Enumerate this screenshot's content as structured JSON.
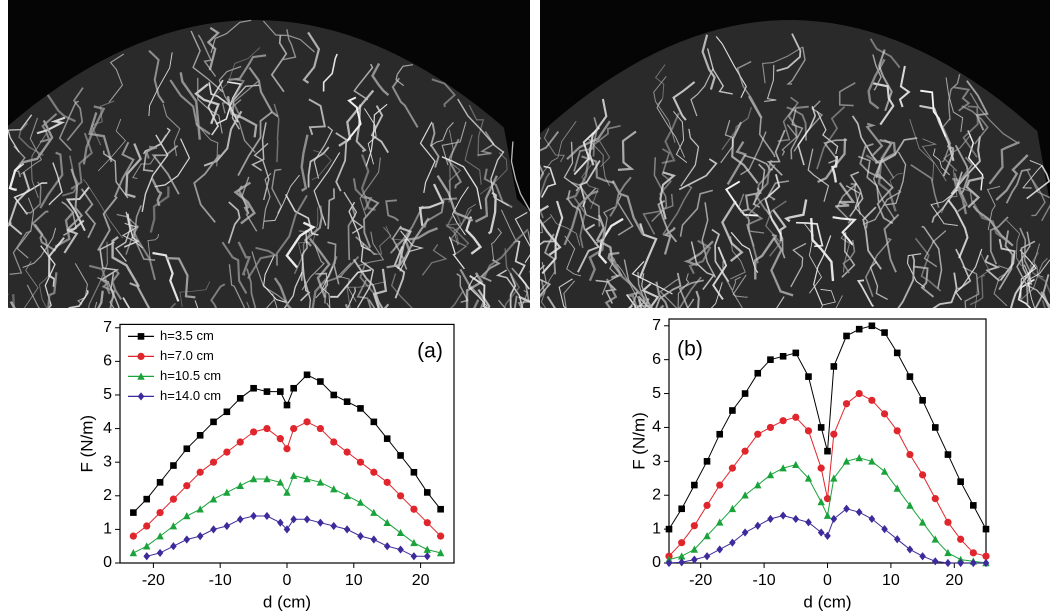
{
  "chart_data": [
    {
      "type": "line",
      "annotation": "(a)",
      "xlabel": "d (cm)",
      "ylabel": "F (N/m)",
      "x": [
        -23,
        -21,
        -19,
        -17,
        -15,
        -13,
        -11,
        -9,
        -7,
        -5,
        -3,
        -1,
        0,
        1,
        3,
        5,
        7,
        9,
        11,
        13,
        15,
        17,
        19,
        21,
        23
      ],
      "xlim": [
        -25,
        25
      ],
      "xticks": [
        -20,
        -10,
        0,
        10,
        20
      ],
      "ylim": [
        0,
        7.1
      ],
      "yticks": [
        0,
        1,
        2,
        3,
        4,
        5,
        6,
        7
      ],
      "legend": "upper left",
      "series": [
        {
          "name": "h=3.5 cm",
          "color": "#000000",
          "marker": "square",
          "values": [
            1.5,
            1.9,
            2.4,
            2.9,
            3.4,
            3.8,
            4.2,
            4.5,
            4.9,
            5.2,
            5.1,
            5.1,
            4.7,
            5.2,
            5.6,
            5.4,
            5.0,
            4.8,
            4.6,
            4.2,
            3.7,
            3.2,
            2.7,
            2.1,
            1.6
          ]
        },
        {
          "name": "h=7.0 cm",
          "color": "#e0262c",
          "marker": "circle",
          "values": [
            0.8,
            1.1,
            1.5,
            1.9,
            2.3,
            2.7,
            3.0,
            3.3,
            3.6,
            3.9,
            4.0,
            3.7,
            3.4,
            4.0,
            4.2,
            4.0,
            3.6,
            3.3,
            3.0,
            2.7,
            2.4,
            2.0,
            1.6,
            1.2,
            0.8
          ]
        },
        {
          "name": "h=10.5 cm",
          "color": "#1aa33a",
          "marker": "triangle",
          "values": [
            0.3,
            0.5,
            0.8,
            1.1,
            1.4,
            1.6,
            1.9,
            2.1,
            2.3,
            2.5,
            2.5,
            2.4,
            2.1,
            2.6,
            2.5,
            2.4,
            2.2,
            2.0,
            1.8,
            1.5,
            1.2,
            0.9,
            0.6,
            0.4,
            0.3
          ]
        },
        {
          "name": "h=14.0 cm",
          "color": "#3f2a9c",
          "marker": "diamond",
          "values": [
            null,
            0.2,
            0.3,
            0.5,
            0.7,
            0.8,
            1.0,
            1.1,
            1.3,
            1.4,
            1.4,
            1.2,
            1.0,
            1.3,
            1.3,
            1.2,
            1.1,
            1.0,
            0.8,
            0.7,
            0.5,
            0.4,
            0.2,
            0.2,
            null
          ]
        }
      ]
    },
    {
      "type": "line",
      "annotation": "(b)",
      "xlabel": "d (cm)",
      "ylabel": "F (N/m)",
      "x": [
        -25,
        -23,
        -21,
        -19,
        -17,
        -15,
        -13,
        -11,
        -9,
        -7,
        -5,
        -3,
        -1,
        0,
        1,
        3,
        5,
        7,
        9,
        11,
        13,
        15,
        17,
        19,
        21,
        23,
        25
      ],
      "xlim": [
        -25,
        25
      ],
      "xticks": [
        -20,
        -10,
        0,
        10,
        20
      ],
      "ylim": [
        0,
        7.2
      ],
      "yticks": [
        0,
        1,
        2,
        3,
        4,
        5,
        6,
        7
      ],
      "series": [
        {
          "color": "#000000",
          "marker": "square",
          "values": [
            1.0,
            1.6,
            2.3,
            3.0,
            3.8,
            4.5,
            5.0,
            5.6,
            6.0,
            6.1,
            6.2,
            5.5,
            4.0,
            3.3,
            5.8,
            6.7,
            6.9,
            7.0,
            6.8,
            6.2,
            5.5,
            4.8,
            4.0,
            3.2,
            2.4,
            1.7,
            1.0
          ]
        },
        {
          "color": "#e0262c",
          "marker": "circle",
          "values": [
            0.2,
            0.6,
            1.1,
            1.7,
            2.3,
            2.8,
            3.3,
            3.8,
            4.0,
            4.2,
            4.3,
            3.9,
            2.8,
            1.9,
            3.8,
            4.7,
            5.0,
            4.8,
            4.4,
            3.9,
            3.2,
            2.6,
            1.9,
            1.2,
            0.7,
            0.3,
            0.2
          ]
        },
        {
          "color": "#1aa33a",
          "marker": "triangle",
          "values": [
            0.1,
            0.2,
            0.4,
            0.8,
            1.2,
            1.6,
            2.0,
            2.3,
            2.6,
            2.8,
            2.9,
            2.5,
            1.8,
            1.4,
            2.5,
            3.0,
            3.1,
            3.0,
            2.7,
            2.2,
            1.7,
            1.2,
            0.7,
            0.3,
            0.1,
            0.05,
            0.0
          ]
        },
        {
          "color": "#3f2a9c",
          "marker": "diamond",
          "values": [
            0,
            0.02,
            0.1,
            0.2,
            0.4,
            0.6,
            0.9,
            1.1,
            1.3,
            1.4,
            1.3,
            1.2,
            0.9,
            0.8,
            1.3,
            1.6,
            1.5,
            1.3,
            1.0,
            0.7,
            0.4,
            0.2,
            0.05,
            0,
            0,
            0,
            0
          ]
        }
      ]
    }
  ]
}
